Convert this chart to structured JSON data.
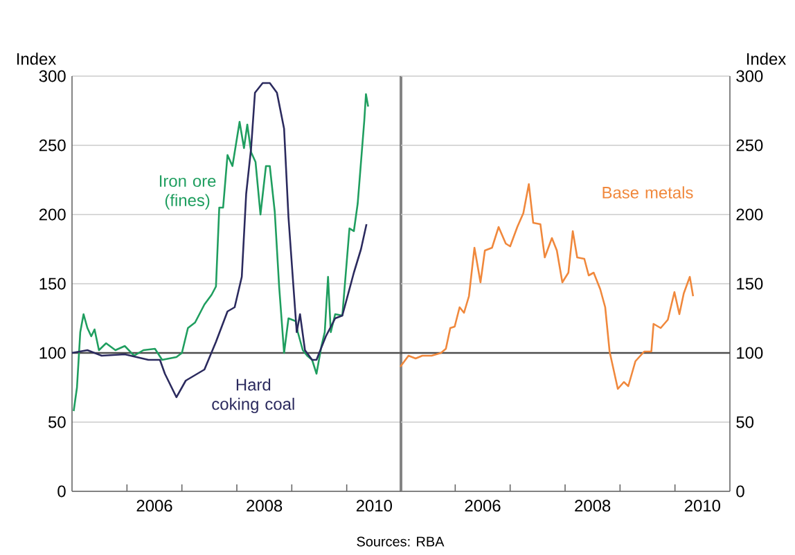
{
  "chart_data": [
    {
      "type": "line",
      "ylabel": "Index",
      "xlim": [
        2005,
        2011
      ],
      "ylim": [
        0,
        300
      ],
      "yticks": [
        0,
        50,
        100,
        150,
        200,
        250,
        300
      ],
      "grid": "y",
      "line_style": "solid",
      "marker": "none",
      "xticks": [
        {
          "value": 2006,
          "label": null
        },
        {
          "value": 2006.5,
          "label": "2006"
        },
        {
          "value": 2007,
          "label": null
        },
        {
          "value": 2008,
          "label": null
        },
        {
          "value": 2008.5,
          "label": "2008"
        },
        {
          "value": 2009,
          "label": null
        },
        {
          "value": 2010,
          "label": null
        },
        {
          "value": 2010.5,
          "label": "2010"
        }
      ],
      "ref_lines": [
        {
          "axis": "y",
          "value": 100,
          "color": "#4d4d4d"
        }
      ],
      "annotations": [
        "Sources: RBA"
      ],
      "series": [
        {
          "name": "Iron ore (fines)",
          "color": "#1f9e5f",
          "x": [
            2005.03,
            2005.09,
            2005.15,
            2005.21,
            2005.28,
            2005.35,
            2005.41,
            2005.49,
            2005.62,
            2005.79,
            2005.96,
            2006.13,
            2006.3,
            2006.51,
            2006.64,
            2006.9,
            2007.0,
            2007.11,
            2007.24,
            2007.41,
            2007.54,
            2007.62,
            2007.68,
            2007.75,
            2007.83,
            2007.92,
            2008.05,
            2008.13,
            2008.19,
            2008.26,
            2008.34,
            2008.43,
            2008.53,
            2008.6,
            2008.69,
            2008.77,
            2008.86,
            2008.94,
            2009.07,
            2009.11,
            2009.2,
            2009.28,
            2009.37,
            2009.45,
            2009.54,
            2009.6,
            2009.66,
            2009.71,
            2009.79,
            2009.92,
            2010.05,
            2010.13,
            2010.2,
            2010.26,
            2010.32,
            2010.35,
            2010.39
          ],
          "values": [
            58,
            75,
            115,
            128,
            118,
            112,
            117,
            102,
            107,
            102,
            105,
            98,
            102,
            103,
            95,
            97,
            100,
            118,
            122,
            135,
            142,
            148,
            205,
            205,
            243,
            235,
            267,
            248,
            265,
            245,
            238,
            200,
            235,
            235,
            202,
            148,
            100,
            125,
            123,
            115,
            102,
            98,
            95,
            85,
            105,
            115,
            155,
            115,
            128,
            127,
            190,
            188,
            208,
            238,
            268,
            287,
            278
          ]
        },
        {
          "name": "Hard coking coal",
          "color": "#2b2a5e",
          "x": [
            2005.0,
            2005.28,
            2005.54,
            2005.96,
            2006.39,
            2006.6,
            2006.69,
            2006.9,
            2007.07,
            2007.41,
            2007.62,
            2007.83,
            2007.96,
            2008.09,
            2008.17,
            2008.26,
            2008.33,
            2008.47,
            2008.6,
            2008.73,
            2008.86,
            2008.94,
            2009.03,
            2009.09,
            2009.15,
            2009.24,
            2009.37,
            2009.45,
            2009.62,
            2009.79,
            2009.92,
            2010.13,
            2010.26,
            2010.36
          ],
          "values": [
            100,
            102,
            98,
            99,
            95,
            95,
            85,
            68,
            80,
            88,
            108,
            130,
            133,
            155,
            215,
            248,
            288,
            295,
            295,
            288,
            262,
            198,
            148,
            115,
            128,
            102,
            95,
            95,
            112,
            125,
            127,
            158,
            175,
            193
          ]
        }
      ]
    },
    {
      "type": "line",
      "y2label": "Index",
      "xlim": [
        2005,
        2011
      ],
      "y2lim": [
        0,
        300
      ],
      "y2ticks": [
        0,
        50,
        100,
        150,
        200,
        250,
        300
      ],
      "grid": "y",
      "line_style": "solid",
      "marker": "none",
      "xticks": [
        {
          "value": 2006,
          "label": null
        },
        {
          "value": 2006.5,
          "label": "2006"
        },
        {
          "value": 2007,
          "label": null
        },
        {
          "value": 2008,
          "label": null
        },
        {
          "value": 2008.5,
          "label": "2008"
        },
        {
          "value": 2009,
          "label": null
        },
        {
          "value": 2010,
          "label": null
        },
        {
          "value": 2010.5,
          "label": "2010"
        }
      ],
      "ref_lines": [
        {
          "axis": "y2",
          "value": 100,
          "color": "#4d4d4d"
        }
      ],
      "series": [
        {
          "name": "Base metals",
          "color": "#f0883c",
          "axis": "y2",
          "x": [
            2005.0,
            2005.15,
            2005.28,
            2005.4,
            2005.57,
            2005.74,
            2005.83,
            2005.91,
            2005.99,
            2006.08,
            2006.16,
            2006.25,
            2006.35,
            2006.46,
            2006.54,
            2006.67,
            2006.79,
            2006.92,
            2007.0,
            2007.13,
            2007.24,
            2007.34,
            2007.42,
            2007.55,
            2007.63,
            2007.76,
            2007.85,
            2007.95,
            2008.06,
            2008.14,
            2008.22,
            2008.35,
            2008.43,
            2008.52,
            2008.64,
            2008.73,
            2008.81,
            2008.96,
            2009.07,
            2009.15,
            2009.28,
            2009.44,
            2009.57,
            2009.61,
            2009.74,
            2009.87,
            2009.99,
            2010.08,
            2010.16,
            2010.27,
            2010.33
          ],
          "values": [
            90,
            98,
            96,
            98,
            98,
            100,
            103,
            118,
            119,
            133,
            129,
            141,
            176,
            151,
            174,
            176,
            191,
            179,
            177,
            191,
            201,
            222,
            194,
            193,
            169,
            183,
            174,
            151,
            158,
            188,
            169,
            168,
            156,
            158,
            146,
            133,
            101,
            74,
            79,
            76,
            94,
            101,
            101,
            121,
            118,
            124,
            144,
            128,
            143,
            155,
            141
          ]
        }
      ]
    }
  ]
}
